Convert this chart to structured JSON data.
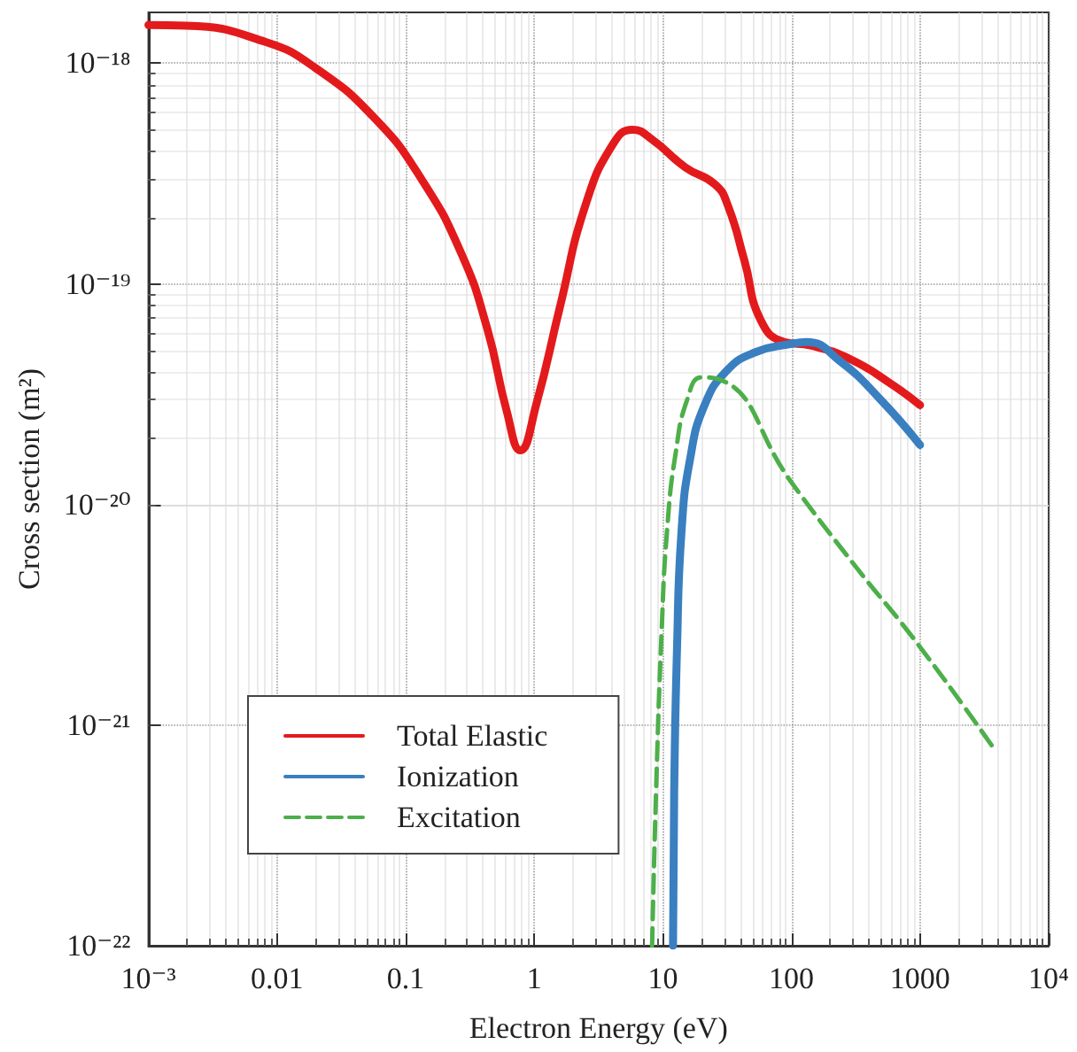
{
  "chart_data": {
    "type": "line",
    "xlabel": "Electron Energy (eV)",
    "ylabel": "Cross section (m²)",
    "log": "xy",
    "grid": true,
    "legend": "bottom left",
    "marker": "none",
    "xlim": [
      0.001,
      10000
    ],
    "ylim": [
      1e-22,
      1.7e-18
    ],
    "xticks": [
      {
        "value": 0.001,
        "label": "10⁻³"
      },
      0.01,
      0.1,
      1,
      10,
      100,
      1000,
      {
        "value": 10000,
        "label": "10⁴"
      }
    ],
    "yticks": [
      {
        "value": 1e-22,
        "label": "10⁻²²"
      },
      {
        "value": 1e-21,
        "label": "10⁻²¹"
      },
      {
        "value": 1e-20,
        "label": "10⁻²⁰"
      },
      {
        "value": 1e-19,
        "label": "10⁻¹⁹"
      },
      {
        "value": 1e-18,
        "label": "10⁻¹⁸"
      }
    ],
    "series": [
      {
        "name": "Total Elastic",
        "color": "#e31a1c",
        "line_style": "solid",
        "x": [
          0.001,
          0.00196,
          0.0081,
          0.02,
          0.058,
          0.132,
          0.27,
          0.43,
          0.61,
          0.78,
          1.04,
          1.58,
          2.5,
          4.1,
          5.8,
          8.3,
          15,
          25.5,
          32,
          43,
          58,
          88,
          141,
          288,
          588,
          1000
        ],
        "values": [
          1.49e-18,
          1.48e-18,
          1.25e-18,
          9.5e-19,
          5.6e-19,
          3e-19,
          1.38e-19,
          6.3e-20,
          2.66e-20,
          1.76e-20,
          2.86e-20,
          7.8e-20,
          2.27e-19,
          4.3e-19,
          5e-19,
          4.5e-19,
          3.37e-19,
          2.82e-19,
          2.27e-19,
          1.28e-19,
          6.8e-20,
          5.45e-20,
          5.26e-20,
          4.55e-20,
          3.54e-20,
          2.82e-20
        ]
      },
      {
        "name": "Ionization",
        "color": "#3a7fc0",
        "line_style": "solid",
        "x": [
          12.0,
          12.25,
          12.9,
          14.0,
          16.3,
          21,
          31.5,
          52.5,
          100,
          131,
          240,
          490,
          1000
        ],
        "values": [
          1e-22,
          4.9e-22,
          2.26e-21,
          7.7e-21,
          1.61e-20,
          2.8e-20,
          4.05e-20,
          4.9e-20,
          5.35e-20,
          5.45e-20,
          4.45e-20,
          3e-20,
          1.86e-20
        ]
      },
      {
        "name": "Excitation",
        "color": "#4daf4a",
        "line_style": "dashed",
        "x": [
          8.25,
          8.85,
          9.8,
          10.8,
          12.6,
          15.5,
          20,
          27,
          100,
          295,
          1000,
          3830
        ],
        "values": [
          1e-22,
          4.9e-22,
          2.72e-21,
          7.7e-21,
          1.72e-20,
          3e-20,
          3.77e-20,
          3.7e-20,
          1.26e-20,
          5.5e-21,
          2.26e-21,
          7.7e-22
        ]
      }
    ]
  }
}
